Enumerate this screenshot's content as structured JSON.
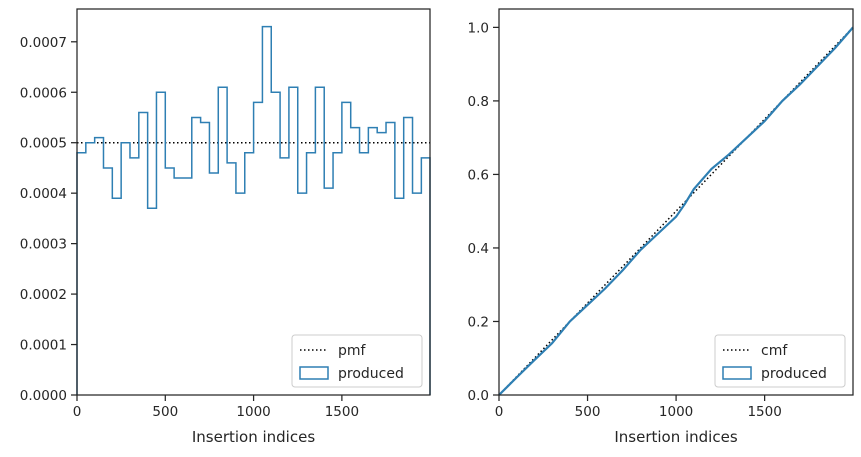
{
  "chart_data": [
    {
      "type": "step",
      "xlabel": "Insertion indices",
      "ylabel": "",
      "xlim": [
        0,
        1999
      ],
      "ylim": [
        0,
        0.000765
      ],
      "xticks": [
        "0",
        "500",
        "1000",
        "1500"
      ],
      "xtick_values": [
        0,
        500,
        1000,
        1500
      ],
      "yticks": [
        "0.0000",
        "0.0001",
        "0.0002",
        "0.0003",
        "0.0004",
        "0.0005",
        "0.0006",
        "0.0007"
      ],
      "ytick_values": [
        0,
        0.0001,
        0.0002,
        0.0003,
        0.0004,
        0.0005,
        0.0006,
        0.0007
      ],
      "legend_position": "lower-right",
      "series": [
        {
          "name": "pmf",
          "style": "dotted",
          "color": "#000000",
          "x": [
            0,
            1999
          ],
          "values": [
            0.0005,
            0.0005
          ]
        },
        {
          "name": "produced",
          "style": "step",
          "color": "#2e7fb3",
          "bin_edges": [
            0,
            50,
            100,
            150,
            200,
            250,
            300,
            350,
            400,
            450,
            500,
            550,
            600,
            650,
            700,
            750,
            800,
            850,
            900,
            950,
            1000,
            1050,
            1100,
            1150,
            1200,
            1250,
            1300,
            1350,
            1400,
            1450,
            1500,
            1550,
            1600,
            1650,
            1700,
            1750,
            1800,
            1850,
            1900,
            1950,
            1999
          ],
          "values": [
            0.00048,
            0.0005,
            0.00051,
            0.00045,
            0.00039,
            0.0005,
            0.00047,
            0.00056,
            0.00037,
            0.0006,
            0.00045,
            0.00043,
            0.00043,
            0.00055,
            0.00054,
            0.00044,
            0.00061,
            0.00046,
            0.0004,
            0.00048,
            0.00058,
            0.00073,
            0.0006,
            0.00047,
            0.00061,
            0.0004,
            0.00048,
            0.00061,
            0.00041,
            0.00048,
            0.00058,
            0.00053,
            0.00048,
            0.00053,
            0.00052,
            0.00054,
            0.00039,
            0.00055,
            0.0004,
            0.00047
          ]
        }
      ]
    },
    {
      "type": "line",
      "xlabel": "Insertion indices",
      "ylabel": "",
      "xlim": [
        0,
        1999
      ],
      "ylim": [
        0,
        1.05
      ],
      "xticks": [
        "0",
        "500",
        "1000",
        "1500"
      ],
      "xtick_values": [
        0,
        500,
        1000,
        1500
      ],
      "yticks": [
        "0.0",
        "0.2",
        "0.4",
        "0.6",
        "0.8",
        "1.0"
      ],
      "ytick_values": [
        0,
        0.2,
        0.4,
        0.6,
        0.8,
        1.0
      ],
      "legend_position": "lower-right",
      "series": [
        {
          "name": "cmf",
          "style": "dotted",
          "color": "#000000",
          "x": [
            0,
            1999
          ],
          "values": [
            0,
            1
          ]
        },
        {
          "name": "produced",
          "style": "line",
          "color": "#2e7fb3",
          "x": [
            0,
            100,
            200,
            300,
            400,
            500,
            600,
            700,
            800,
            900,
            1000,
            1050,
            1100,
            1200,
            1300,
            1400,
            1500,
            1600,
            1700,
            1800,
            1900,
            1999
          ],
          "values": [
            0,
            0.048,
            0.095,
            0.141,
            0.2,
            0.245,
            0.29,
            0.34,
            0.395,
            0.44,
            0.485,
            0.52,
            0.56,
            0.615,
            0.655,
            0.7,
            0.745,
            0.8,
            0.845,
            0.895,
            0.945,
            1.0
          ]
        }
      ]
    }
  ]
}
